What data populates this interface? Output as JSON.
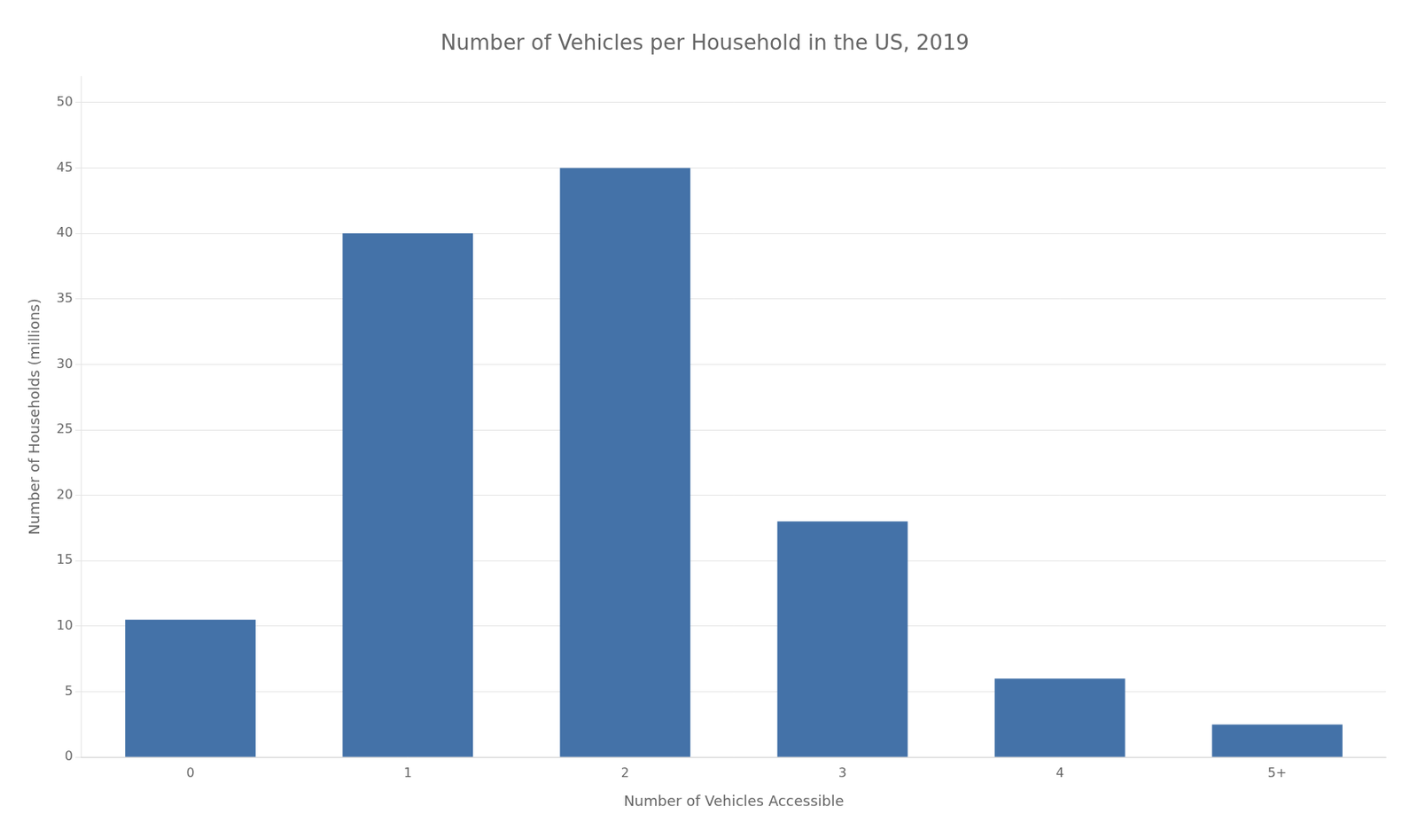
{
  "chart_data": {
    "type": "bar",
    "title": "Number of Vehicles per Household in the US, 2019",
    "xlabel": "Number of Vehicles Accessible",
    "ylabel": "Number of Households (millions)",
    "categories": [
      "0",
      "1",
      "2",
      "3",
      "4",
      "5+"
    ],
    "values": [
      10.5,
      40.0,
      45.0,
      18.0,
      6.0,
      2.5
    ],
    "color": "#4472a8",
    "ylim": [
      0,
      52
    ],
    "yticks": [
      0,
      5,
      10,
      15,
      20,
      25,
      30,
      35,
      40,
      45,
      50
    ],
    "grid": true
  }
}
